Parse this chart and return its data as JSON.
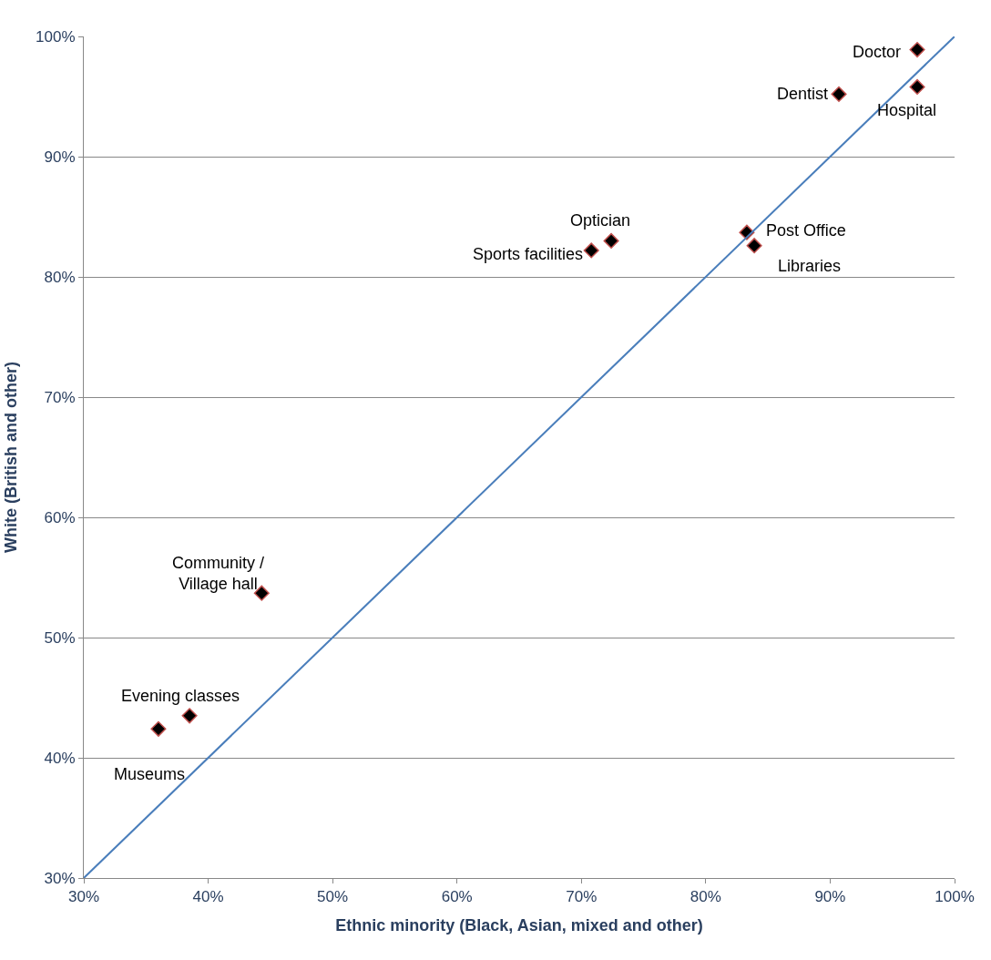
{
  "chart_data": {
    "type": "scatter",
    "xlabel": "Ethnic minority (Black, Asian, mixed and other)",
    "ylabel": "White (British and other)",
    "xlim": [
      30,
      100
    ],
    "ylim": [
      30,
      100
    ],
    "xticks": [
      {
        "value": 30,
        "label": "30%"
      },
      {
        "value": 40,
        "label": "40%"
      },
      {
        "value": 50,
        "label": "50%"
      },
      {
        "value": 60,
        "label": "60%"
      },
      {
        "value": 70,
        "label": "70%"
      },
      {
        "value": 80,
        "label": "80%"
      },
      {
        "value": 90,
        "label": "90%"
      },
      {
        "value": 100,
        "label": "100%"
      }
    ],
    "yticks": [
      {
        "value": 30,
        "label": "30%"
      },
      {
        "value": 40,
        "label": "40%"
      },
      {
        "value": 50,
        "label": "50%"
      },
      {
        "value": 60,
        "label": "60%"
      },
      {
        "value": 70,
        "label": "70%"
      },
      {
        "value": 80,
        "label": "80%"
      },
      {
        "value": 90,
        "label": "90%"
      },
      {
        "value": 100,
        "label": "100%"
      }
    ],
    "grid": "y",
    "marker": "diamond",
    "series": [
      {
        "color": "#000000",
        "x": [
          97.0,
          97.0,
          90.7,
          72.4,
          70.8,
          83.3,
          83.9,
          44.3,
          38.5,
          36.0
        ],
        "values": [
          98.9,
          95.8,
          95.2,
          83.0,
          82.2,
          83.7,
          82.6,
          53.7,
          43.5,
          42.4
        ]
      },
      {
        "type": "line",
        "marker": "none",
        "color": "#4a7ebb",
        "x": [
          30,
          100
        ],
        "values": [
          30,
          100
        ]
      }
    ],
    "annotations": [
      {
        "text": "Doctor",
        "x": 97.0,
        "y": 98.9
      },
      {
        "text": "Hospital",
        "x": 97.0,
        "y": 95.8
      },
      {
        "text": "Dentist",
        "x": 90.7,
        "y": 95.2
      },
      {
        "text": "Optician",
        "x": 72.4,
        "y": 83.0
      },
      {
        "text": "Sports facilities",
        "x": 70.8,
        "y": 82.2
      },
      {
        "text": "Post Office",
        "x": 83.3,
        "y": 83.7
      },
      {
        "text": "Libraries",
        "x": 83.9,
        "y": 82.6
      },
      {
        "text": "Community /\nVillage hall",
        "x": 44.3,
        "y": 53.7
      },
      {
        "text": "Evening classes",
        "x": 38.5,
        "y": 43.5
      },
      {
        "text": "Museums",
        "x": 36.0,
        "y": 42.4
      }
    ]
  }
}
